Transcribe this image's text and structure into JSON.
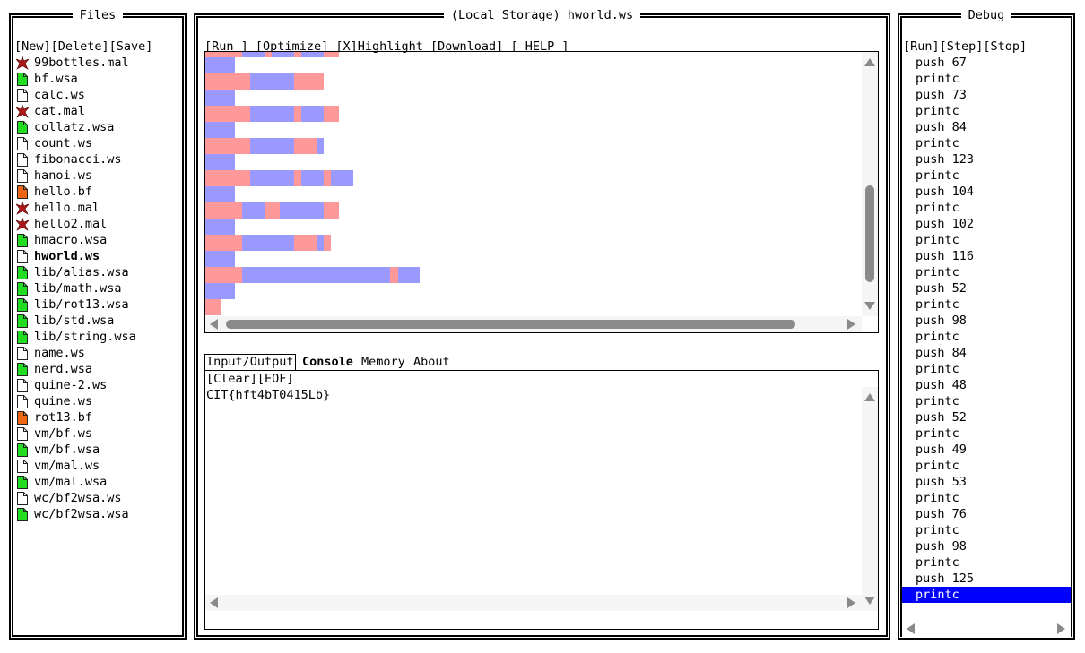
{
  "colors": {
    "space": "#ff9999",
    "tab": "#9999ff",
    "selection": "#0000ff"
  },
  "files_panel": {
    "title": "Files",
    "actions": [
      "[New]",
      "[Delete]",
      "[Save]"
    ],
    "items": [
      {
        "name": "99bottles.mal",
        "type": "mal"
      },
      {
        "name": "bf.wsa",
        "type": "wsa"
      },
      {
        "name": "calc.ws",
        "type": "ws"
      },
      {
        "name": "cat.mal",
        "type": "mal"
      },
      {
        "name": "collatz.wsa",
        "type": "wsa"
      },
      {
        "name": "count.ws",
        "type": "ws"
      },
      {
        "name": "fibonacci.ws",
        "type": "ws"
      },
      {
        "name": "hanoi.ws",
        "type": "ws"
      },
      {
        "name": "hello.bf",
        "type": "bf"
      },
      {
        "name": "hello.mal",
        "type": "mal"
      },
      {
        "name": "hello2.mal",
        "type": "mal"
      },
      {
        "name": "hmacro.wsa",
        "type": "wsa"
      },
      {
        "name": "hworld.ws",
        "type": "ws",
        "active": true
      },
      {
        "name": "lib/alias.wsa",
        "type": "wsa"
      },
      {
        "name": "lib/math.wsa",
        "type": "wsa"
      },
      {
        "name": "lib/rot13.wsa",
        "type": "wsa"
      },
      {
        "name": "lib/std.wsa",
        "type": "wsa"
      },
      {
        "name": "lib/string.wsa",
        "type": "wsa"
      },
      {
        "name": "name.ws",
        "type": "ws"
      },
      {
        "name": "nerd.wsa",
        "type": "wsa"
      },
      {
        "name": "quine-2.ws",
        "type": "ws"
      },
      {
        "name": "quine.ws",
        "type": "ws"
      },
      {
        "name": "rot13.bf",
        "type": "bf"
      },
      {
        "name": "vm/bf.ws",
        "type": "ws"
      },
      {
        "name": "vm/bf.wsa",
        "type": "wsa"
      },
      {
        "name": "vm/mal.ws",
        "type": "ws"
      },
      {
        "name": "vm/mal.wsa",
        "type": "wsa"
      },
      {
        "name": "wc/bf2wsa.ws",
        "type": "ws"
      },
      {
        "name": "wc/bf2wsa.wsa",
        "type": "wsa"
      }
    ]
  },
  "editor": {
    "title": "(Local Storage) hworld.ws",
    "toolbar": [
      "[Run ]",
      "[Optimize]",
      "[X]Highlight",
      "[Download]",
      "[ HELP ]"
    ],
    "code_lines": [
      "SSSSSTTTSTTTSTTTSS",
      "TTTT",
      "SSSSSSTTTTTTSSSS",
      "TTTT",
      "SSSSSSTTTTTTSTTTSS",
      "TTTT",
      "SSSSSSTTTTTTSSST",
      "TTTT",
      "SSSSSSTTTTTTSTTTSTTT",
      "TTTT",
      "SSSSSTTTSSTTTTTTSS",
      "TTTT",
      "SSSSSTTTTTTTSSSTS",
      "TTTT",
      "SSSSSTTTTTTTTTTTTTTTTTTTTSTTT",
      "TTTT",
      "SS"
    ]
  },
  "io": {
    "tabs": [
      "Input/Output",
      "Console",
      "Memory",
      "About"
    ],
    "active_tab": "Input/Output",
    "actions": [
      "[Clear]",
      "[EOF]"
    ],
    "output": "CIT{hft4bT0415Lb}"
  },
  "debug": {
    "title": "Debug",
    "actions": [
      "[Run]",
      "[Step]",
      "[Stop]"
    ],
    "instructions": [
      "push 67",
      "printc",
      "push 73",
      "printc",
      "push 84",
      "printc",
      "push 123",
      "printc",
      "push 104",
      "printc",
      "push 102",
      "printc",
      "push 116",
      "printc",
      "push 52",
      "printc",
      "push 98",
      "printc",
      "push 84",
      "printc",
      "push 48",
      "printc",
      "push 52",
      "printc",
      "push 49",
      "printc",
      "push 53",
      "printc",
      "push 76",
      "printc",
      "push 98",
      "printc",
      "push 125",
      "printc"
    ],
    "selected_index": 33
  }
}
